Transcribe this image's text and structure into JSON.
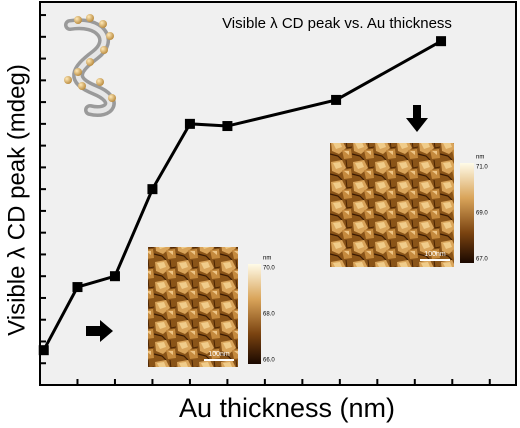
{
  "chart_data": {
    "type": "line",
    "title": "Visible λ CD peak vs. Au thickness",
    "xlabel": "Au thickness (nm)",
    "ylabel": "Visible λ CD peak (mdeg)",
    "x": [
      0.1,
      1,
      2,
      3,
      4,
      5,
      7.9,
      10.7
    ],
    "values": [
      1.6,
      4.5,
      5.0,
      9.0,
      12.0,
      11.9,
      13.1,
      15.8
    ],
    "color": "#000000",
    "xlim": [
      0,
      12.7
    ],
    "ylim": [
      0,
      17.6
    ],
    "xticks": [
      1,
      2,
      3,
      4,
      5,
      6,
      7,
      8,
      9,
      10,
      11,
      12
    ],
    "yticks": [
      1,
      2,
      3,
      4,
      5,
      6,
      7,
      8,
      9,
      10,
      11,
      12,
      13,
      14,
      15,
      16,
      17
    ],
    "insets": [
      {
        "unit": "nm",
        "colorbar_labels": [
          "70.0",
          "68.0",
          "66.0"
        ],
        "scale_bar": "100nm"
      },
      {
        "unit": "nm",
        "colorbar_labels": [
          "71.0",
          "69.0",
          "67.0"
        ],
        "scale_bar": "100nm"
      }
    ]
  }
}
